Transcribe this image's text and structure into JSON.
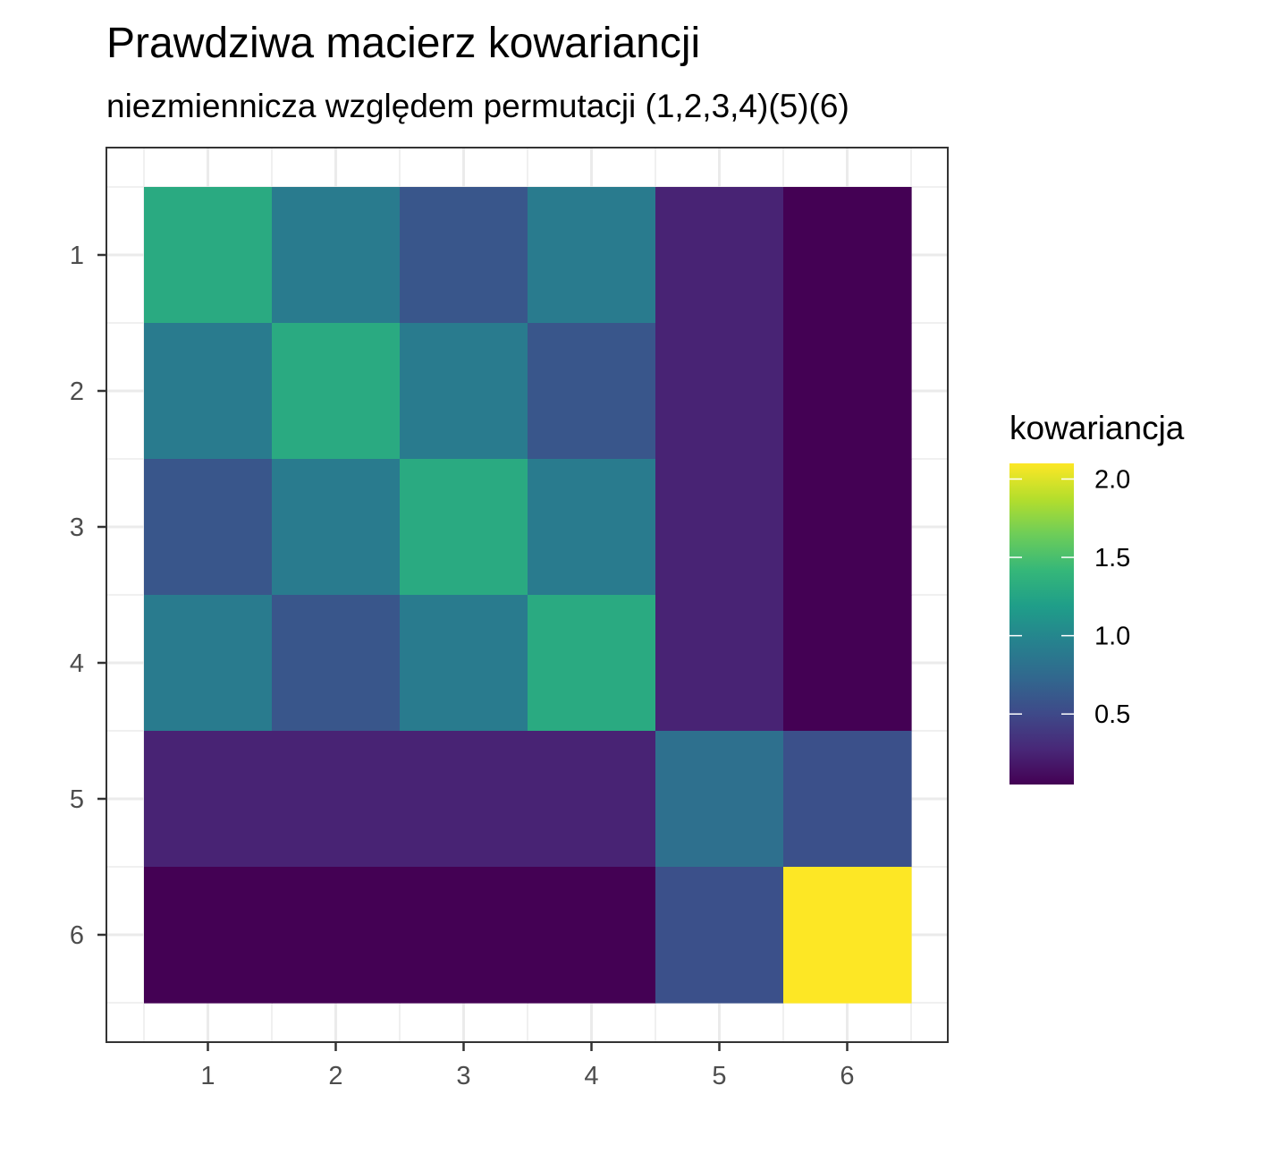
{
  "chart_data": {
    "type": "heatmap",
    "title": "Prawdziwa macierz kowariancji",
    "subtitle": "niezmiennicza względem permutacji (1,2,3,4)(5)(6)",
    "x_categories": [
      "1",
      "2",
      "3",
      "4",
      "5",
      "6"
    ],
    "y_categories": [
      "1",
      "2",
      "3",
      "4",
      "5",
      "6"
    ],
    "values": [
      [
        1.3,
        0.9,
        0.6,
        0.9,
        0.25,
        0.05
      ],
      [
        0.9,
        1.3,
        0.9,
        0.6,
        0.25,
        0.05
      ],
      [
        0.6,
        0.9,
        1.3,
        0.9,
        0.25,
        0.05
      ],
      [
        0.9,
        0.6,
        0.9,
        1.3,
        0.25,
        0.05
      ],
      [
        0.25,
        0.25,
        0.25,
        0.25,
        0.8,
        0.55
      ],
      [
        0.05,
        0.05,
        0.05,
        0.05,
        0.55,
        2.1
      ]
    ],
    "legend": {
      "title": "kowariancja",
      "ticks": [
        0.5,
        1.0,
        1.5,
        2.0
      ],
      "tick_labels": [
        "0.5",
        "1.0",
        "1.5",
        "2.0"
      ],
      "range": [
        0.05,
        2.1
      ],
      "placement": "right"
    },
    "colormap": "viridis",
    "colormap_stops": [
      "#440154",
      "#482878",
      "#3E4A89",
      "#31688E",
      "#26828E",
      "#1F9E89",
      "#35B779",
      "#6DCD59",
      "#B4DE2C",
      "#FDE725"
    ],
    "grid": true
  }
}
